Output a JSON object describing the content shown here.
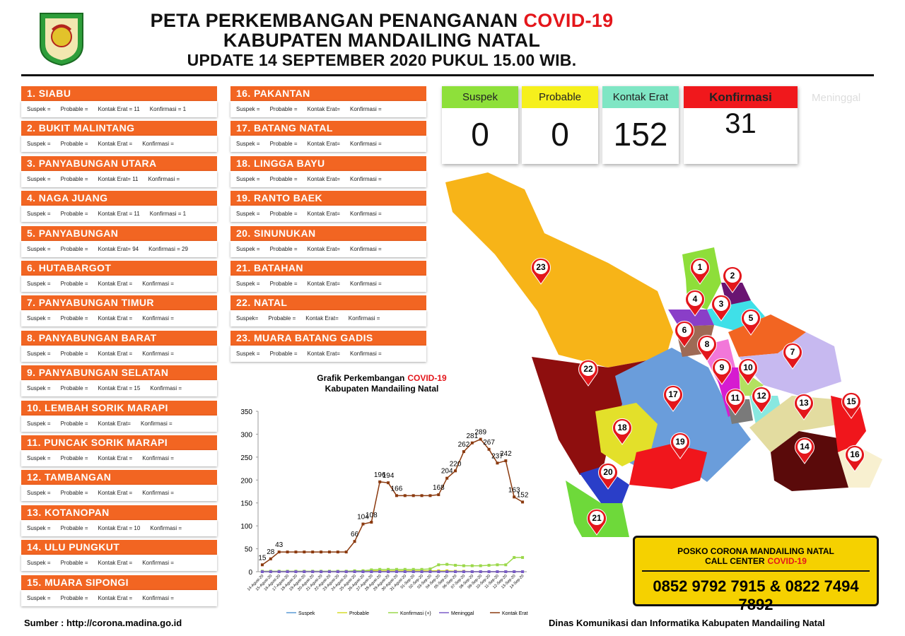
{
  "header": {
    "title": "PETA PERKEMBANGAN PENANGANAN",
    "title_highlight": "COVID-19",
    "subtitle": "KABUPATEN MANDAILING NATAL",
    "update": "UPDATE 14 SEPTEMBER 2020 PUKUL 15.00 WIB."
  },
  "districts": [
    {
      "name": "1. SIABU",
      "stats": [
        "Suspek =",
        "Probable =",
        "Kontak Erat = 11",
        "Konfirmasi = 1"
      ]
    },
    {
      "name": "2. BUKIT MALINTANG",
      "stats": [
        "Suspek =",
        "Probable =",
        "Kontak Erat =",
        "Konfirmasi ="
      ]
    },
    {
      "name": "3. PANYABUNGAN UTARA",
      "stats": [
        "Suspek =",
        "Probable =",
        "Kontak Erat= 11",
        "Konfirmasi ="
      ]
    },
    {
      "name": "4. NAGA JUANG",
      "stats": [
        "Suspek =",
        "Probable =",
        "Kontak Erat = 11",
        "Konfirmasi = 1"
      ]
    },
    {
      "name": "5. PANYABUNGAN",
      "stats": [
        "Suspek =",
        "Probable =",
        "Kontak Erat= 94",
        "Konfirmasi = 29"
      ]
    },
    {
      "name": "6. HUTABARGOT",
      "stats": [
        "Suspek =",
        "Probable =",
        "Kontak Erat =",
        "Konfirmasi ="
      ]
    },
    {
      "name": "7. PANYABUNGAN TIMUR",
      "stats": [
        "Suspek =",
        "Probable =",
        "Kontak Erat =",
        "Konfirmasi ="
      ]
    },
    {
      "name": "8. PANYABUNGAN BARAT",
      "stats": [
        "Suspek =",
        "Probable =",
        "Kontak Erat =",
        "Konfirmasi ="
      ]
    },
    {
      "name": "9. PANYABUNGAN SELATAN",
      "stats": [
        "Suspek =",
        "Probable =",
        "Kontak Erat = 15",
        "Konfirmasi ="
      ]
    },
    {
      "name": "10. LEMBAH SORIK MARAPI",
      "stats": [
        "Suspek =",
        "Probable =",
        "Kontak Erat=",
        "Konfirmasi ="
      ]
    },
    {
      "name": "11. PUNCAK SORIK MARAPI",
      "stats": [
        "Suspek =",
        "Probable =",
        "Kontak Erat =",
        "Konfirmasi ="
      ]
    },
    {
      "name": "12. TAMBANGAN",
      "stats": [
        "Suspek =",
        "Probable =",
        "Kontak Erat =",
        "Konfirmasi ="
      ]
    },
    {
      "name": "13. KOTANOPAN",
      "stats": [
        "Suspek =",
        "Probable =",
        "Kontak Erat = 10",
        "Konfirmasi ="
      ]
    },
    {
      "name": "14. ULU PUNGKUT",
      "stats": [
        "Suspek =",
        "Probable =",
        "Kontak Erat =",
        "Konfirmasi ="
      ]
    },
    {
      "name": "15. MUARA SIPONGI",
      "stats": [
        "Suspek =",
        "Probable =",
        "Kontak Erat =",
        "Konfirmasi ="
      ]
    },
    {
      "name": "16. PAKANTAN",
      "stats": [
        "Suspek =",
        "Probable =",
        "Kontak Erat=",
        "Konfirmasi ="
      ]
    },
    {
      "name": "17. BATANG NATAL",
      "stats": [
        "Suspek =",
        "Probable =",
        "Kontak Erat=",
        "Konfirmasi ="
      ]
    },
    {
      "name": "18. LINGGA BAYU",
      "stats": [
        "Suspek =",
        "Probable =",
        "Kontak Erat=",
        "Konfirmasi ="
      ]
    },
    {
      "name": "19. RANTO BAEK",
      "stats": [
        "Suspek =",
        "Probable =",
        "Kontak Erat=",
        "Konfirmasi ="
      ]
    },
    {
      "name": "20. SINUNUKAN",
      "stats": [
        "Suspek =",
        "Probable =",
        "Kontak Erat=",
        "Konfirmasi ="
      ]
    },
    {
      "name": "21. BATAHAN",
      "stats": [
        "Suspek =",
        "Probable =",
        "Kontak Erat=",
        "Konfirmasi ="
      ]
    },
    {
      "name": "22. NATAL",
      "stats": [
        "Suspek=",
        "Probable =",
        "Kontak Erat=",
        "Konfirmasi ="
      ]
    },
    {
      "name": "23. MUARA BATANG GADIS",
      "stats": [
        "Suspek =",
        "Probable =",
        "Kontak Erat=",
        "Konfirmasi ="
      ]
    }
  ],
  "summary": [
    {
      "label": "Suspek",
      "value": 0,
      "color": "#8ee03a"
    },
    {
      "label": "Probable",
      "value": 0,
      "color": "#f6f01c"
    },
    {
      "label": "Kontak Erat",
      "value": 152,
      "color": "#7fe6c4"
    },
    {
      "label": "Konfirmasi",
      "value": 31,
      "color": "#f0181c"
    }
  ],
  "summary_extra": "Meninggal",
  "map": {
    "markers": [
      1,
      2,
      3,
      4,
      5,
      6,
      7,
      8,
      9,
      10,
      11,
      12,
      13,
      14,
      15,
      16,
      17,
      18,
      19,
      20,
      21,
      22,
      23
    ]
  },
  "chart_data": {
    "type": "line",
    "title": "Grafik Perkembangan",
    "title_highlight": "COVID-19",
    "subtitle": "Kabupaten Mandailing Natal",
    "categories": [
      "14-Agust-20",
      "15-Agust-20",
      "16-Agust-20",
      "17-Agust-20",
      "18-Agust-20",
      "19-Agust-20",
      "20-Agust-20",
      "21-Agust-20",
      "22-Agust-20",
      "23-Agust-20",
      "24-Agust-20",
      "25-Agust-20",
      "26-Agust-20",
      "27-Agust-20",
      "28-Agust-20",
      "29-Agust-20",
      "30-Agust-20",
      "31-Agust-20",
      "01-Sep-20",
      "02-Sep-20",
      "03-Sep-20",
      "04-Sep-20",
      "05-Sep-20",
      "06-Sep-20",
      "07-Sep-20",
      "08-Sep-20",
      "09-Sep-20",
      "10-Sep-20",
      "11-Sep-20",
      "12-Sep-20",
      "13-Sep-20",
      "14-Sep-20"
    ],
    "series": [
      {
        "name": "Suspek",
        "color": "#5b9bd5",
        "values": [
          0,
          0,
          0,
          0,
          0,
          0,
          0,
          0,
          0,
          0,
          0,
          0,
          0,
          0,
          0,
          0,
          0,
          0,
          0,
          0,
          0,
          0,
          0,
          0,
          0,
          0,
          0,
          0,
          0,
          0,
          0,
          0
        ]
      },
      {
        "name": "Probable",
        "color": "#d6dc2a",
        "values": [
          0,
          0,
          0,
          0,
          0,
          0,
          0,
          0,
          0,
          0,
          0,
          0,
          2,
          2,
          2,
          2,
          2,
          2,
          2,
          2,
          2,
          2,
          2,
          1,
          1,
          0,
          0,
          0,
          0,
          0,
          0,
          0
        ]
      },
      {
        "name": "Konfirmasi (+)",
        "color": "#9bd84a",
        "values": [
          1,
          1,
          1,
          1,
          1,
          1,
          1,
          1,
          1,
          1,
          1,
          2,
          2,
          4,
          5,
          5,
          5,
          5,
          5,
          5,
          6,
          15,
          16,
          14,
          13,
          13,
          13,
          14,
          15,
          15,
          31,
          31
        ]
      },
      {
        "name": "Meninggal",
        "color": "#7a5cc8",
        "values": [
          0,
          0,
          0,
          0,
          0,
          0,
          0,
          0,
          0,
          0,
          0,
          0,
          0,
          0,
          0,
          0,
          0,
          0,
          0,
          0,
          0,
          0,
          0,
          0,
          0,
          0,
          0,
          0,
          0,
          0,
          0,
          0
        ]
      },
      {
        "name": "Kontak Erat",
        "color": "#8b3a0f",
        "values": [
          15,
          28,
          43,
          43,
          43,
          43,
          43,
          43,
          43,
          43,
          43,
          66,
          104,
          108,
          196,
          194,
          166,
          166,
          166,
          166,
          166,
          168,
          204,
          220,
          262,
          281,
          289,
          267,
          237,
          242,
          163,
          152
        ]
      }
    ],
    "ylim": [
      0,
      350
    ],
    "yticks": [
      0,
      50,
      100,
      150,
      200,
      250,
      300,
      350
    ],
    "grid": false
  },
  "callcenter": {
    "line1": "POSKO CORONA MANDAILING NATAL",
    "line2": "CALL CENTER",
    "line2_highlight": "COVID-19",
    "phones": "0852 9792 7915 & 0822 7494 7892"
  },
  "footer": {
    "source": "Sumber : http://corona.madina.go.id",
    "agency": "Dinas Komunikasi dan Informatika Kabupaten Mandailing Natal"
  }
}
